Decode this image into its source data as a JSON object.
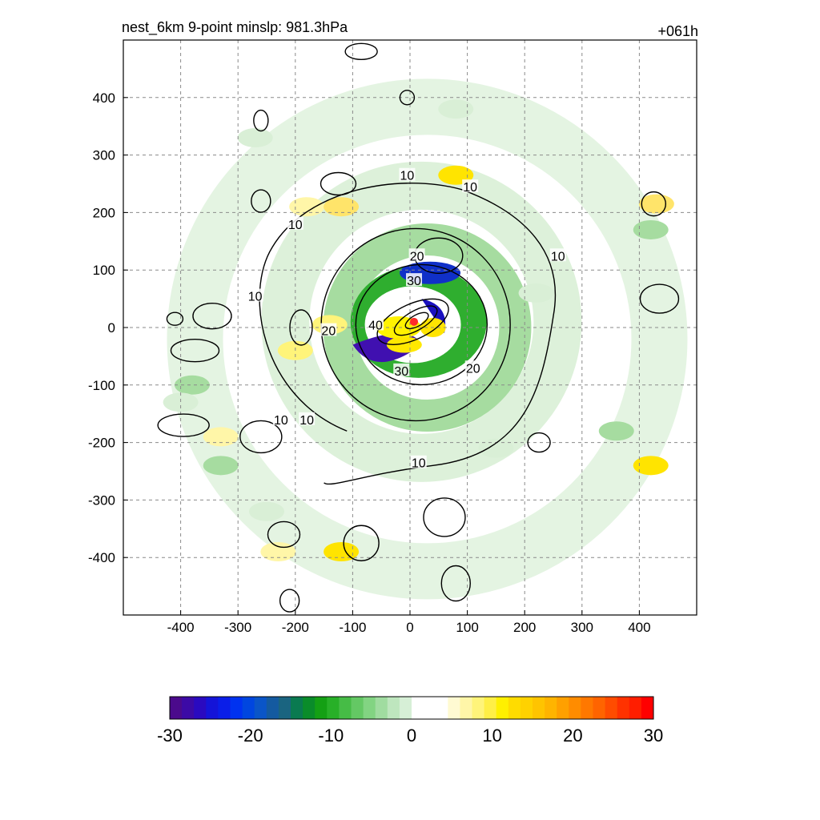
{
  "chart_data": {
    "type": "heatmap",
    "title_left": "nest_6km  9-point minslp: 981.3hPa",
    "title_right": "+061h",
    "xlabel": "",
    "ylabel": "",
    "xlim": [
      -500,
      500
    ],
    "ylim": [
      -500,
      500
    ],
    "x_ticks": [
      -400,
      -300,
      -200,
      -100,
      0,
      100,
      200,
      300,
      400
    ],
    "y_ticks": [
      400,
      300,
      200,
      100,
      0,
      -100,
      -200,
      -300,
      -400
    ],
    "grid": true,
    "grid_style": "dashed gray",
    "contour_labels": [
      {
        "text": "10",
        "x": -5,
        "y": 265
      },
      {
        "text": "10",
        "x": 105,
        "y": 245
      },
      {
        "text": "10",
        "x": -200,
        "y": 180
      },
      {
        "text": "10",
        "x": 258,
        "y": 125
      },
      {
        "text": "10",
        "x": -270,
        "y": 55
      },
      {
        "text": "20",
        "x": 12,
        "y": 125
      },
      {
        "text": "30",
        "x": 7,
        "y": 82
      },
      {
        "text": "40",
        "x": -60,
        "y": 5
      },
      {
        "text": "20",
        "x": -142,
        "y": -5
      },
      {
        "text": "30",
        "x": -15,
        "y": -75
      },
      {
        "text": "20",
        "x": 110,
        "y": -70
      },
      {
        "text": "10",
        "x": -225,
        "y": -160
      },
      {
        "text": "10",
        "x": -180,
        "y": -160
      },
      {
        "text": "10",
        "x": 15,
        "y": -235
      }
    ],
    "storm_center_marker": {
      "x": 7,
      "y": 10,
      "color": "#ff2a2a"
    },
    "colorbar": {
      "ticks": [
        -30,
        -20,
        -10,
        0,
        10,
        20,
        30
      ],
      "range": [
        -30,
        30
      ],
      "colors": [
        "#4b0a8c",
        "#3c0aa6",
        "#2a0ac0",
        "#1414d8",
        "#0a1ee8",
        "#0032f0",
        "#0046e0",
        "#0a55c8",
        "#145aa0",
        "#1a6480",
        "#0a7a50",
        "#0a8c2a",
        "#14a014",
        "#28b028",
        "#46bc46",
        "#64c864",
        "#82d482",
        "#a0dca0",
        "#bee6be",
        "#d6efd6",
        "#ffffff",
        "#ffffff",
        "#ffffff",
        "#fffad2",
        "#fff6a8",
        "#fff47a",
        "#ffef46",
        "#fff000",
        "#ffdc00",
        "#ffd200",
        "#ffc400",
        "#ffb400",
        "#ffa000",
        "#ff8c00",
        "#ff7800",
        "#ff6400",
        "#ff4c00",
        "#ff3200",
        "#ff1e00",
        "#ff0000"
      ]
    }
  }
}
